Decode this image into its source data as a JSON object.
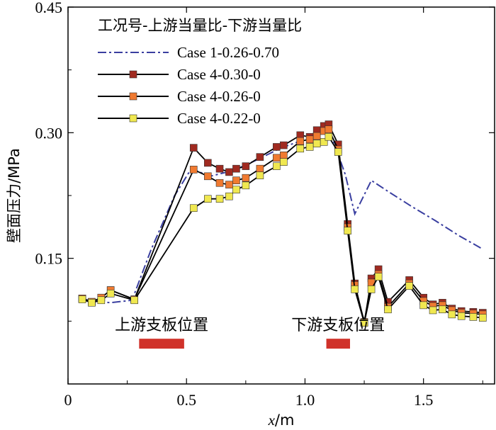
{
  "chart_data": {
    "type": "line",
    "title": "",
    "xlabel": "x/m",
    "xlabel_var": "x",
    "xlabel_unit": "/m",
    "ylabel": "壁面压力/MPa",
    "xlim": [
      0,
      1.8
    ],
    "ylim": [
      0.0,
      0.45
    ],
    "xticks": [
      0,
      0.5,
      1.0,
      1.5
    ],
    "xtick_labels": [
      "0",
      "0.5",
      "1.0",
      "1.5"
    ],
    "yticks": [
      0.15,
      0.3,
      0.45
    ],
    "ytick_labels": [
      "0.15",
      "0.30",
      "0.45"
    ],
    "grid": false,
    "legend": {
      "title": "工况号-上游当量比-下游当量比",
      "placement": "top-left"
    },
    "series": [
      {
        "name": "Case 1-0.26-0.70",
        "color": "#3a3fa0",
        "style": "dash-dot",
        "marker": "none",
        "x": [
          0.05,
          0.1,
          0.14,
          0.18,
          0.27,
          0.35,
          0.45,
          0.52,
          0.6,
          0.7,
          0.8,
          0.9,
          1.0,
          1.08,
          1.12,
          1.17,
          1.21,
          1.28,
          1.35,
          1.45,
          1.55,
          1.65,
          1.75
        ],
        "y": [
          0.101,
          0.1,
          0.098,
          0.097,
          0.1,
          0.16,
          0.225,
          0.257,
          0.248,
          0.255,
          0.268,
          0.282,
          0.292,
          0.301,
          0.29,
          0.25,
          0.203,
          0.243,
          0.23,
          0.212,
          0.195,
          0.177,
          0.161
        ]
      },
      {
        "name": "Case 4-0.30-0",
        "color": "#a02a20",
        "style": "solid",
        "marker": "square",
        "x": [
          0.06,
          0.1,
          0.14,
          0.18,
          0.28,
          0.53,
          0.59,
          0.64,
          0.68,
          0.71,
          0.75,
          0.81,
          0.88,
          0.91,
          0.98,
          1.02,
          1.05,
          1.08,
          1.1,
          1.14,
          1.18,
          1.21,
          1.25,
          1.28,
          1.31,
          1.35,
          1.44,
          1.5,
          1.54,
          1.58,
          1.62,
          1.66,
          1.71,
          1.75
        ],
        "y": [
          0.102,
          0.098,
          0.103,
          0.112,
          0.101,
          0.282,
          0.264,
          0.257,
          0.253,
          0.257,
          0.26,
          0.271,
          0.283,
          0.285,
          0.297,
          0.295,
          0.303,
          0.308,
          0.31,
          0.286,
          0.191,
          0.12,
          0.073,
          0.126,
          0.137,
          0.098,
          0.124,
          0.103,
          0.095,
          0.097,
          0.09,
          0.087,
          0.086,
          0.085
        ]
      },
      {
        "name": "Case 4-0.26-0",
        "color": "#f07a30",
        "style": "solid",
        "marker": "square",
        "x": [
          0.06,
          0.1,
          0.14,
          0.18,
          0.28,
          0.53,
          0.59,
          0.64,
          0.68,
          0.71,
          0.75,
          0.81,
          0.88,
          0.91,
          0.98,
          1.02,
          1.05,
          1.08,
          1.1,
          1.14,
          1.18,
          1.21,
          1.25,
          1.28,
          1.31,
          1.35,
          1.44,
          1.5,
          1.54,
          1.58,
          1.62,
          1.66,
          1.71,
          1.75
        ],
        "y": [
          0.102,
          0.098,
          0.103,
          0.112,
          0.101,
          0.256,
          0.248,
          0.24,
          0.238,
          0.243,
          0.246,
          0.257,
          0.27,
          0.273,
          0.29,
          0.292,
          0.296,
          0.302,
          0.304,
          0.28,
          0.187,
          0.118,
          0.074,
          0.121,
          0.131,
          0.092,
          0.12,
          0.099,
          0.093,
          0.094,
          0.088,
          0.085,
          0.084,
          0.083
        ]
      },
      {
        "name": "Case 4-0.22-0",
        "color": "#f0e850",
        "style": "solid",
        "marker": "square",
        "x": [
          0.06,
          0.1,
          0.14,
          0.18,
          0.28,
          0.53,
          0.59,
          0.64,
          0.68,
          0.71,
          0.75,
          0.81,
          0.88,
          0.91,
          0.98,
          1.02,
          1.05,
          1.08,
          1.1,
          1.14,
          1.18,
          1.21,
          1.25,
          1.28,
          1.31,
          1.35,
          1.44,
          1.5,
          1.54,
          1.58,
          1.62,
          1.66,
          1.71,
          1.75
        ],
        "y": [
          0.101,
          0.097,
          0.1,
          0.108,
          0.1,
          0.21,
          0.221,
          0.221,
          0.224,
          0.232,
          0.237,
          0.249,
          0.26,
          0.265,
          0.281,
          0.283,
          0.287,
          0.289,
          0.295,
          0.277,
          0.183,
          0.113,
          0.073,
          0.113,
          0.128,
          0.089,
          0.117,
          0.094,
          0.088,
          0.089,
          0.083,
          0.081,
          0.08,
          0.079
        ]
      }
    ],
    "annotations": [
      {
        "label": "上游支板位置",
        "x_range": [
          0.3,
          0.49
        ],
        "y": 0.054,
        "color": "#d0322a"
      },
      {
        "label": "下游支板位置",
        "x_range": [
          1.09,
          1.19
        ],
        "y": 0.054,
        "color": "#d0322a"
      }
    ]
  }
}
